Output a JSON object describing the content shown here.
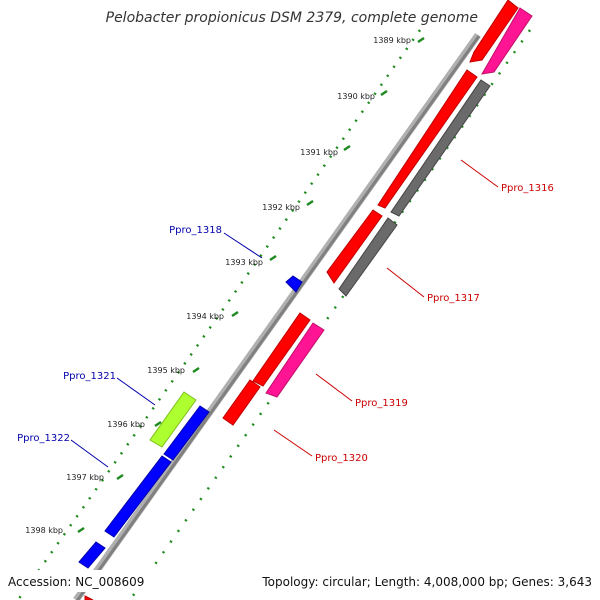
{
  "title": "Pelobacter propionicus DSM 2379, complete genome",
  "footer": {
    "accession": "Accession: NC_008609",
    "topology": "Topology: circular; Length: 4,008,000 bp; Genes: 3,643"
  },
  "ticks": [
    {
      "label": "1389 kbp"
    },
    {
      "label": "1390 kbp"
    },
    {
      "label": "1391 kbp"
    },
    {
      "label": "1392 kbp"
    },
    {
      "label": "1393 kbp"
    },
    {
      "label": "1394 kbp"
    },
    {
      "label": "1395 kbp"
    },
    {
      "label": "1396 kbp"
    },
    {
      "label": "1397 kbp"
    },
    {
      "label": "1398 kbp"
    }
  ],
  "gene_labels": [
    {
      "name": "Ppro_1316",
      "color": "#cc0000"
    },
    {
      "name": "Ppro_1317",
      "color": "#cc0000"
    },
    {
      "name": "Ppro_1318",
      "color": "#0000aa"
    },
    {
      "name": "Ppro_1319",
      "color": "#cc0000"
    },
    {
      "name": "Ppro_1320",
      "color": "#cc0000"
    },
    {
      "name": "Ppro_1321",
      "color": "#0000aa"
    },
    {
      "name": "Ppro_1322",
      "color": "#0000aa"
    }
  ],
  "colors": {
    "forward_gene": "#ff0000",
    "forward_rna": "#ff1493",
    "reverse_gene": "#0000ff",
    "reverse_other": "#adff2f",
    "reverse_grey": "#6a6a6a",
    "backbone": "#888888",
    "tick_marks": "#1f8a1f"
  }
}
